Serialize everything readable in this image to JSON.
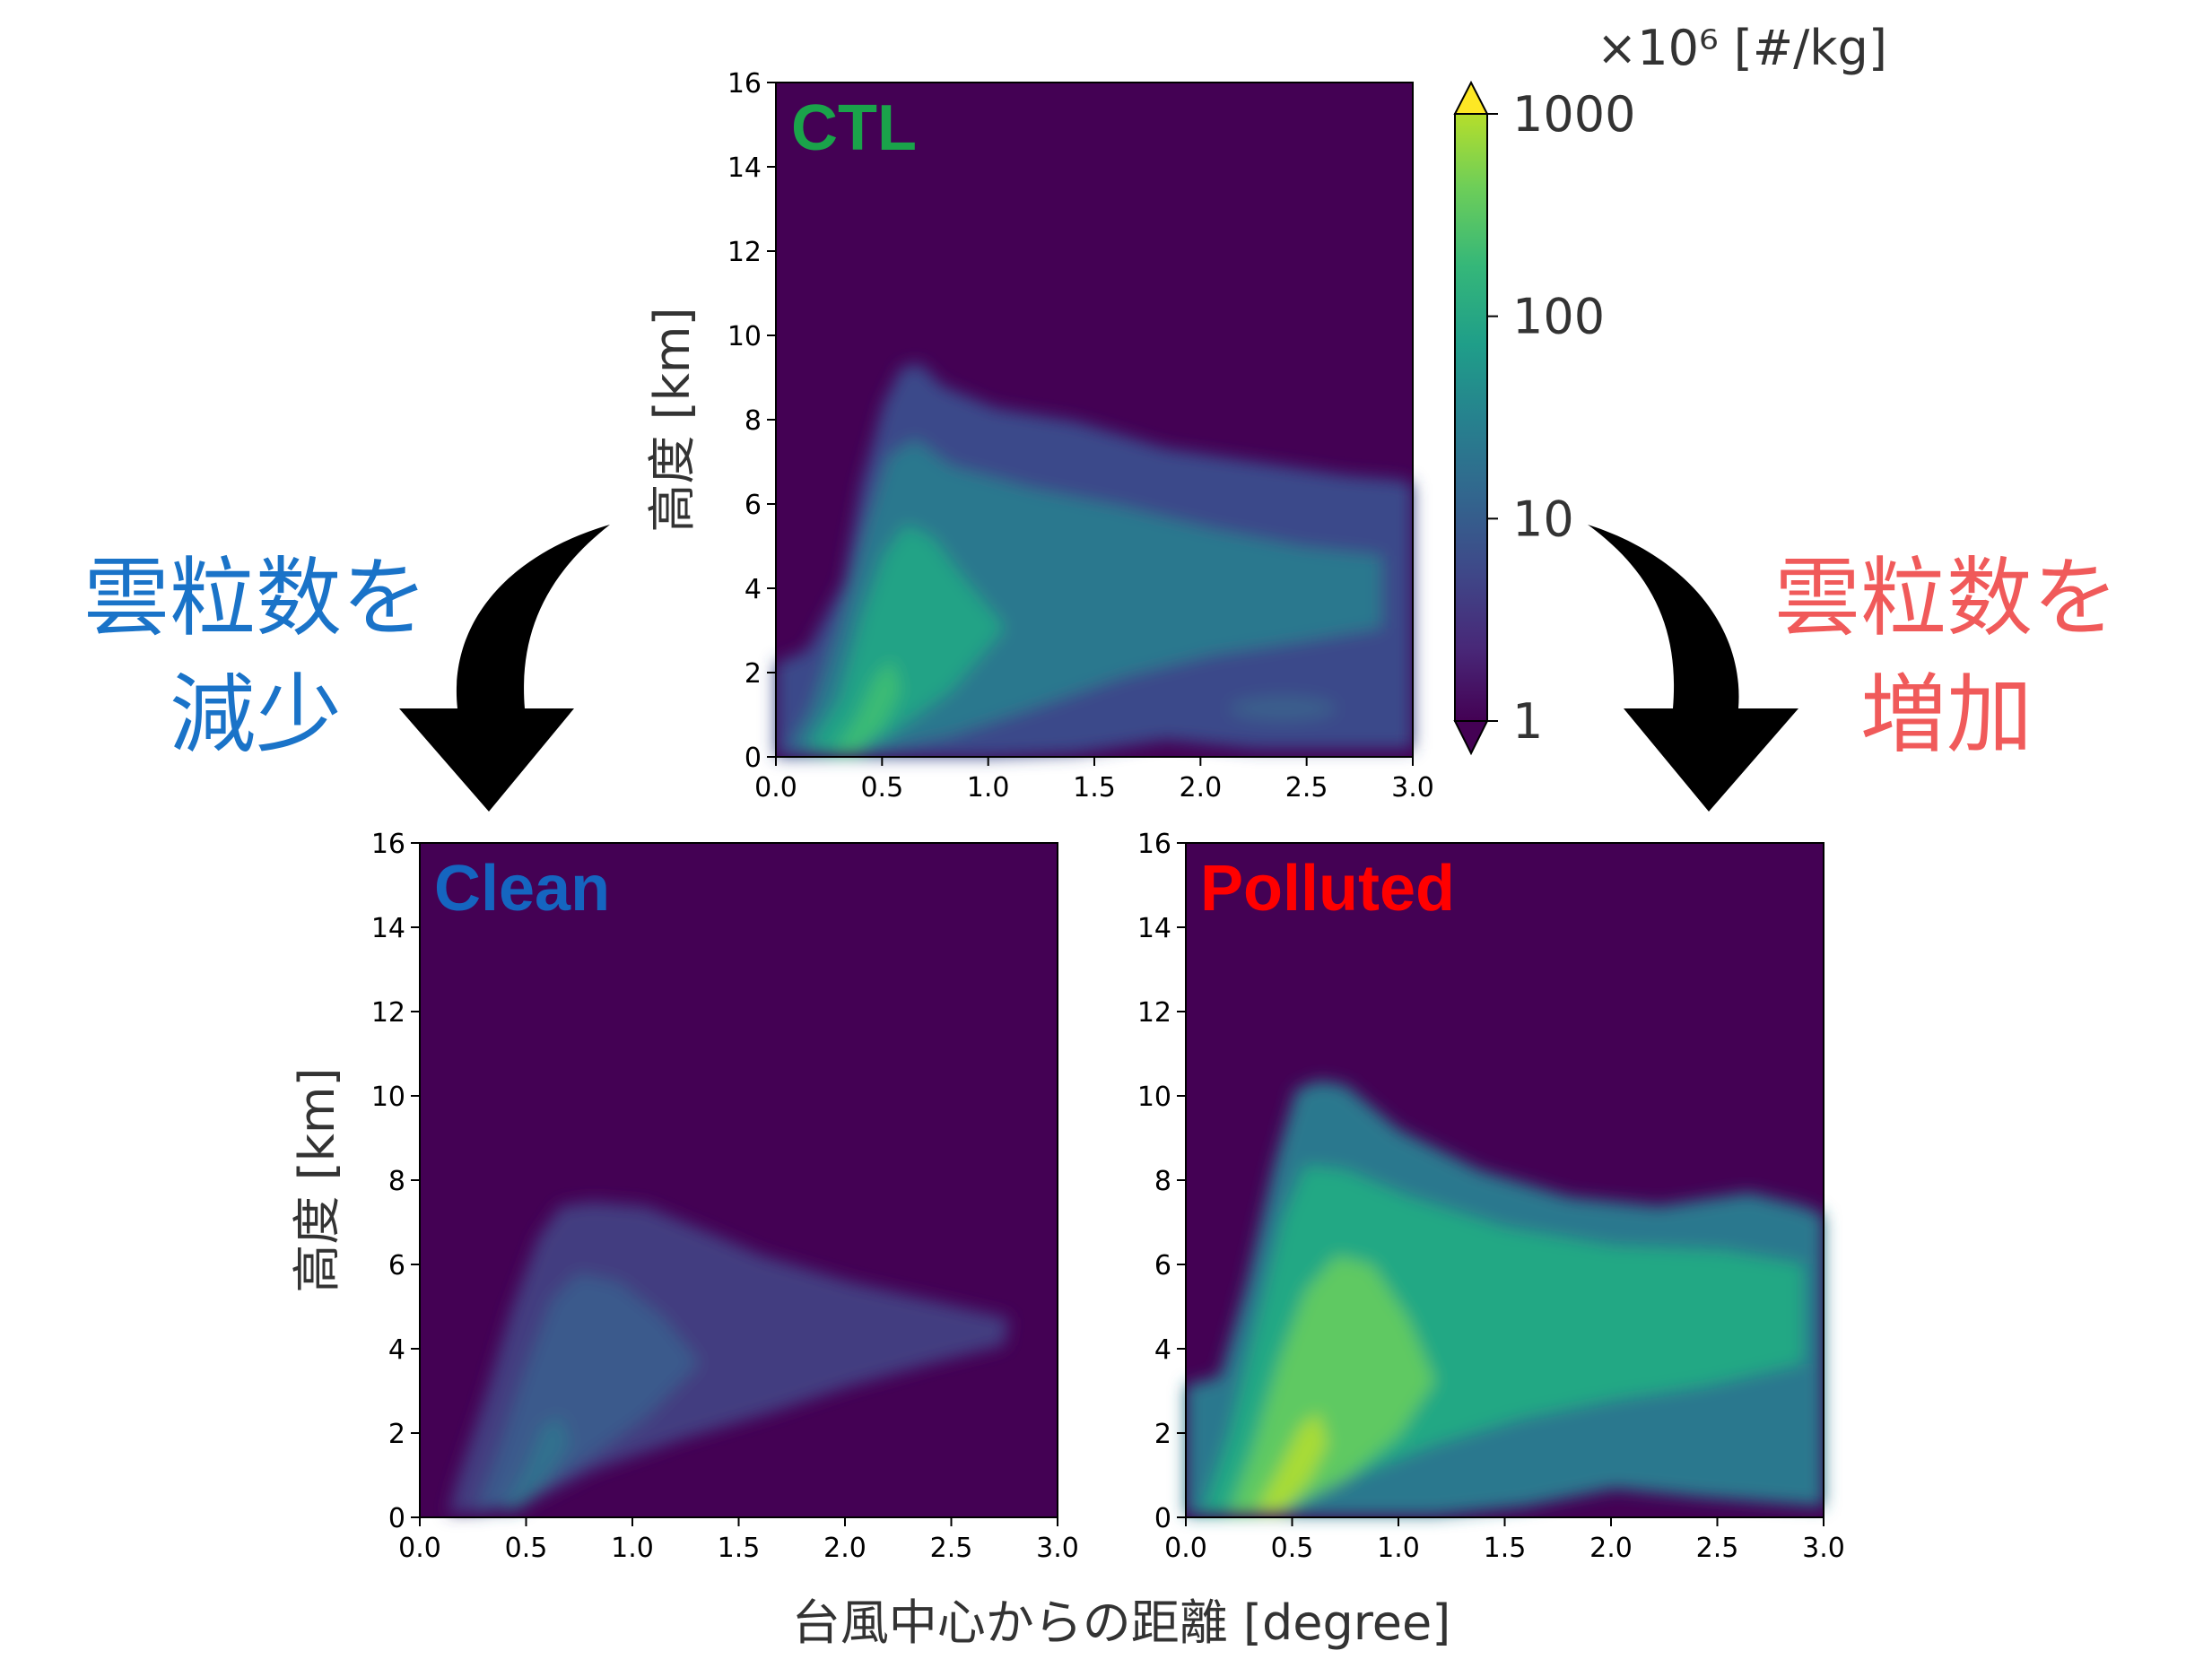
{
  "chart_data": [
    {
      "type": "heatmap",
      "panel": "CTL",
      "title": "CTL",
      "title_color": "#1aa34a",
      "xlabel": "台風中心からの距離 [degree]",
      "ylabel": "高度 [km]",
      "xlim": [
        0.0,
        3.0
      ],
      "ylim": [
        0,
        16
      ],
      "xticks": [
        "0.0",
        "0.5",
        "1.0",
        "1.5",
        "2.0",
        "2.5",
        "3.0"
      ],
      "yticks": [
        "0",
        "2",
        "4",
        "6",
        "8",
        "10",
        "12",
        "14",
        "16"
      ],
      "colorscale": "viridis",
      "log_scale": true,
      "approx_cloud_top_km": [
        [
          0.0,
          2.2
        ],
        [
          0.3,
          3.5
        ],
        [
          0.5,
          7.5
        ],
        [
          0.6,
          8.8
        ],
        [
          0.7,
          9.2
        ],
        [
          0.9,
          8.0
        ],
        [
          1.2,
          7.5
        ],
        [
          1.5,
          7.0
        ],
        [
          2.0,
          6.8
        ],
        [
          2.5,
          6.5
        ],
        [
          3.0,
          6.0
        ]
      ],
      "approx_peak_value": 30,
      "approx_peak_location": [
        0.5,
        1.0
      ]
    },
    {
      "type": "heatmap",
      "panel": "Clean",
      "title": "Clean",
      "title_color": "#1565c0",
      "xlabel": "台風中心からの距離 [degree]",
      "ylabel": "高度 [km]",
      "xlim": [
        0.0,
        3.0
      ],
      "ylim": [
        0,
        16
      ],
      "xticks": [
        "0.0",
        "0.5",
        "1.0",
        "1.5",
        "2.0",
        "2.5",
        "3.0"
      ],
      "yticks": [
        "0",
        "2",
        "4",
        "6",
        "8",
        "10",
        "12",
        "14",
        "16"
      ],
      "colorscale": "viridis",
      "log_scale": true,
      "approx_cloud_top_km": [
        [
          0.2,
          0.8
        ],
        [
          0.4,
          3.0
        ],
        [
          0.6,
          6.0
        ],
        [
          0.8,
          7.5
        ],
        [
          1.0,
          7.2
        ],
        [
          1.5,
          6.5
        ],
        [
          2.0,
          5.5
        ],
        [
          2.5,
          5.0
        ],
        [
          2.7,
          4.8
        ]
      ],
      "approx_peak_value": 5,
      "approx_peak_location": [
        0.6,
        2.0
      ]
    },
    {
      "type": "heatmap",
      "panel": "Polluted",
      "title": "Polluted",
      "title_color": "#ff0000",
      "xlabel": "台風中心からの距離 [degree]",
      "ylabel": "高度 [km]",
      "xlim": [
        0.0,
        3.0
      ],
      "ylim": [
        0,
        16
      ],
      "xticks": [
        "0.0",
        "0.5",
        "1.0",
        "1.5",
        "2.0",
        "2.5",
        "3.0"
      ],
      "yticks": [
        "0",
        "2",
        "4",
        "6",
        "8",
        "10",
        "12",
        "14",
        "16"
      ],
      "colorscale": "viridis",
      "log_scale": true,
      "approx_cloud_top_km": [
        [
          0.0,
          3.2
        ],
        [
          0.3,
          5.0
        ],
        [
          0.5,
          9.5
        ],
        [
          0.6,
          10.3
        ],
        [
          0.8,
          10.0
        ],
        [
          1.0,
          9.0
        ],
        [
          1.5,
          8.5
        ],
        [
          2.0,
          7.5
        ],
        [
          2.5,
          7.8
        ],
        [
          3.0,
          7.2
        ]
      ],
      "approx_peak_value": 300,
      "approx_peak_location": [
        0.5,
        1.0
      ]
    }
  ],
  "colorbar": {
    "unit_label": "×10⁶ [#/kg]",
    "ticks": [
      "1",
      "10",
      "100",
      "1000"
    ],
    "range": [
      1,
      1000
    ],
    "scale": "log",
    "extend": "both"
  },
  "annotations": {
    "left_line1": "雲粒数を",
    "left_line2": "減少",
    "left_color": "#1a73c8",
    "right_line1": "雲粒数を",
    "right_line2": "増加",
    "right_color": "#f05a5a"
  }
}
